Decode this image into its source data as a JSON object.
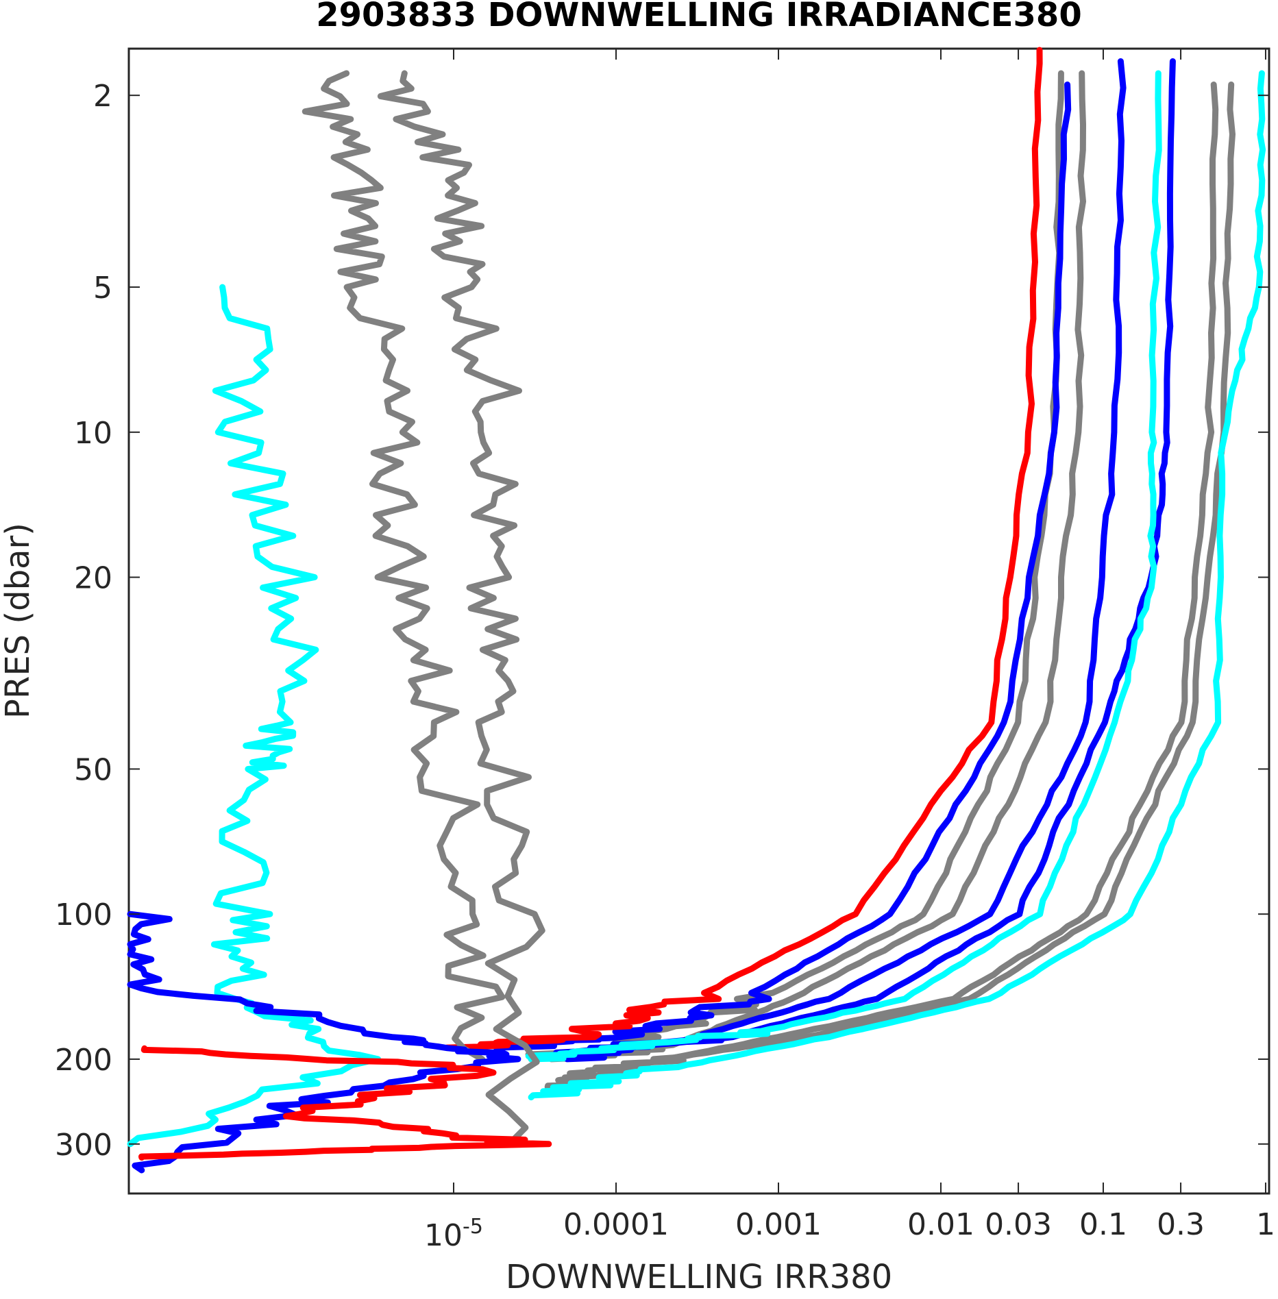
{
  "chart_data": {
    "type": "line",
    "title": "2903833  DOWNWELLING IRRADIANCE380",
    "xlabel": "DOWNWELLING IRR380",
    "ylabel": "PRES (dbar)",
    "x_scale": "log",
    "y_scale": "log",
    "y_reversed": true,
    "xlim": [
      1e-07,
      1.05
    ],
    "ylim": [
      1.6,
      380
    ],
    "grid": false,
    "x_ticks": [
      {
        "value": 1e-05,
        "label": "10",
        "exponent": "-5"
      },
      {
        "value": 0.0001,
        "label": "0.0001"
      },
      {
        "value": 0.001,
        "label": "0.001"
      },
      {
        "value": 0.01,
        "label": "0.01"
      },
      {
        "value": 0.03,
        "label": "0.03"
      },
      {
        "value": 0.1,
        "label": "0.1"
      },
      {
        "value": 0.3,
        "label": "0.3"
      },
      {
        "value": 1,
        "label": "1"
      }
    ],
    "y_ticks": [
      {
        "value": 2,
        "label": "2"
      },
      {
        "value": 5,
        "label": "5"
      },
      {
        "value": 10,
        "label": "10"
      },
      {
        "value": 20,
        "label": "20"
      },
      {
        "value": 50,
        "label": "50"
      },
      {
        "value": 100,
        "label": "100"
      },
      {
        "value": 200,
        "label": "200"
      },
      {
        "value": 300,
        "label": "300"
      }
    ],
    "colors": {
      "grey": "#808080",
      "cyan": "#00ffff",
      "blue": "#0000ff",
      "red": "#ff0000"
    },
    "series": [
      {
        "color": "grey",
        "points": [
          [
            0.055,
            1.8
          ],
          [
            0.05,
            10
          ],
          [
            0.03,
            40
          ],
          [
            0.008,
            100
          ],
          [
            0.0008,
            150
          ],
          [
            0.00015,
            180
          ],
          [
            3e-05,
            200
          ]
        ]
      },
      {
        "color": "grey",
        "points": [
          [
            0.075,
            1.8
          ],
          [
            0.07,
            10
          ],
          [
            0.045,
            40
          ],
          [
            0.012,
            100
          ],
          [
            0.0012,
            150
          ],
          [
            0.0002,
            190
          ],
          [
            4e-05,
            200
          ]
        ]
      },
      {
        "color": "grey",
        "points": [
          [
            0.48,
            1.9
          ],
          [
            0.45,
            10
          ],
          [
            0.3,
            40
          ],
          [
            0.08,
            100
          ],
          [
            0.012,
            150
          ],
          [
            0.001,
            180
          ],
          [
            0.0001,
            210
          ],
          [
            4e-05,
            230
          ]
        ]
      },
      {
        "color": "grey",
        "points": [
          [
            0.62,
            1.9
          ],
          [
            0.55,
            10
          ],
          [
            0.35,
            40
          ],
          [
            0.1,
            100
          ],
          [
            0.015,
            150
          ],
          [
            0.0015,
            180
          ],
          [
            0.0002,
            200
          ],
          [
            5e-05,
            220
          ]
        ]
      },
      {
        "color": "blue",
        "points": [
          [
            0.06,
            1.9
          ],
          [
            0.05,
            10
          ],
          [
            0.025,
            40
          ],
          [
            0.005,
            100
          ],
          [
            0.0006,
            150
          ],
          [
            0.0001,
            180
          ],
          [
            2e-05,
            190
          ]
        ]
      },
      {
        "color": "blue",
        "points": [
          [
            0.13,
            1.7
          ],
          [
            0.12,
            10
          ],
          [
            0.08,
            40
          ],
          [
            0.02,
            100
          ],
          [
            0.002,
            150
          ],
          [
            0.0003,
            180
          ],
          [
            5e-05,
            195
          ]
        ]
      },
      {
        "color": "blue",
        "points": [
          [
            0.27,
            1.7
          ],
          [
            0.25,
            10
          ],
          [
            0.2,
            20
          ],
          [
            0.1,
            40
          ],
          [
            0.03,
            100
          ],
          [
            0.004,
            150
          ],
          [
            0.0005,
            180
          ],
          [
            5e-05,
            200
          ]
        ]
      },
      {
        "color": "cyan",
        "points": [
          [
            0.22,
            1.8
          ],
          [
            0.2,
            10
          ],
          [
            0.2,
            20
          ],
          [
            0.12,
            40
          ],
          [
            0.04,
            100
          ],
          [
            0.006,
            150
          ],
          [
            0.0008,
            175
          ],
          [
            0.0001,
            190
          ],
          [
            3e-05,
            200
          ]
        ]
      },
      {
        "color": "cyan",
        "points": [
          [
            0.95,
            1.8
          ],
          [
            0.9,
            5
          ],
          [
            0.55,
            10
          ],
          [
            0.5,
            40
          ],
          [
            0.15,
            100
          ],
          [
            0.02,
            150
          ],
          [
            0.002,
            180
          ],
          [
            0.0002,
            210
          ],
          [
            3e-05,
            240
          ]
        ]
      },
      {
        "color": "red",
        "points": [
          [
            0.04,
            1.5
          ],
          [
            0.035,
            10
          ],
          [
            0.02,
            40
          ],
          [
            0.003,
            100
          ],
          [
            0.0003,
            150
          ],
          [
            5e-05,
            180
          ],
          [
            1e-05,
            190
          ]
        ]
      },
      {
        "color": "grey",
        "points": [
          [
            4e-06,
            1.8
          ],
          [
            1e-05,
            3
          ],
          [
            1.2e-05,
            5
          ],
          [
            2e-05,
            10
          ],
          [
            1.5e-05,
            20
          ],
          [
            2e-05,
            40
          ],
          [
            2.5e-05,
            100
          ],
          [
            2.2e-05,
            300
          ]
        ]
      },
      {
        "color": "grey",
        "points": [
          [
            1.5e-06,
            1.8
          ],
          [
            2.5e-06,
            3
          ],
          [
            3e-06,
            5
          ],
          [
            4e-06,
            10
          ],
          [
            5e-06,
            20
          ],
          [
            8e-06,
            40
          ],
          [
            1.2e-05,
            100
          ],
          [
            1.5e-05,
            200
          ]
        ]
      },
      {
        "color": "cyan",
        "points": [
          [
            5e-07,
            5
          ],
          [
            5e-07,
            10
          ],
          [
            1e-06,
            20
          ],
          [
            1e-06,
            40
          ],
          [
            6e-07,
            50
          ],
          [
            5e-07,
            100
          ],
          [
            5e-07,
            150
          ],
          [
            3e-06,
            200
          ],
          [
            1e-07,
            300
          ]
        ]
      },
      {
        "color": "blue",
        "points": [
          [
            1.2e-07,
            100
          ],
          [
            1.2e-07,
            140
          ],
          [
            5e-06,
            180
          ],
          [
            2e-05,
            200
          ],
          [
            1e-06,
            250
          ],
          [
            1.2e-07,
            340
          ]
        ]
      },
      {
        "color": "red",
        "points": [
          [
            1.2e-07,
            190
          ],
          [
            2e-05,
            210
          ],
          [
            1e-06,
            260
          ],
          [
            3e-05,
            300
          ],
          [
            1.2e-07,
            320
          ]
        ]
      }
    ]
  }
}
